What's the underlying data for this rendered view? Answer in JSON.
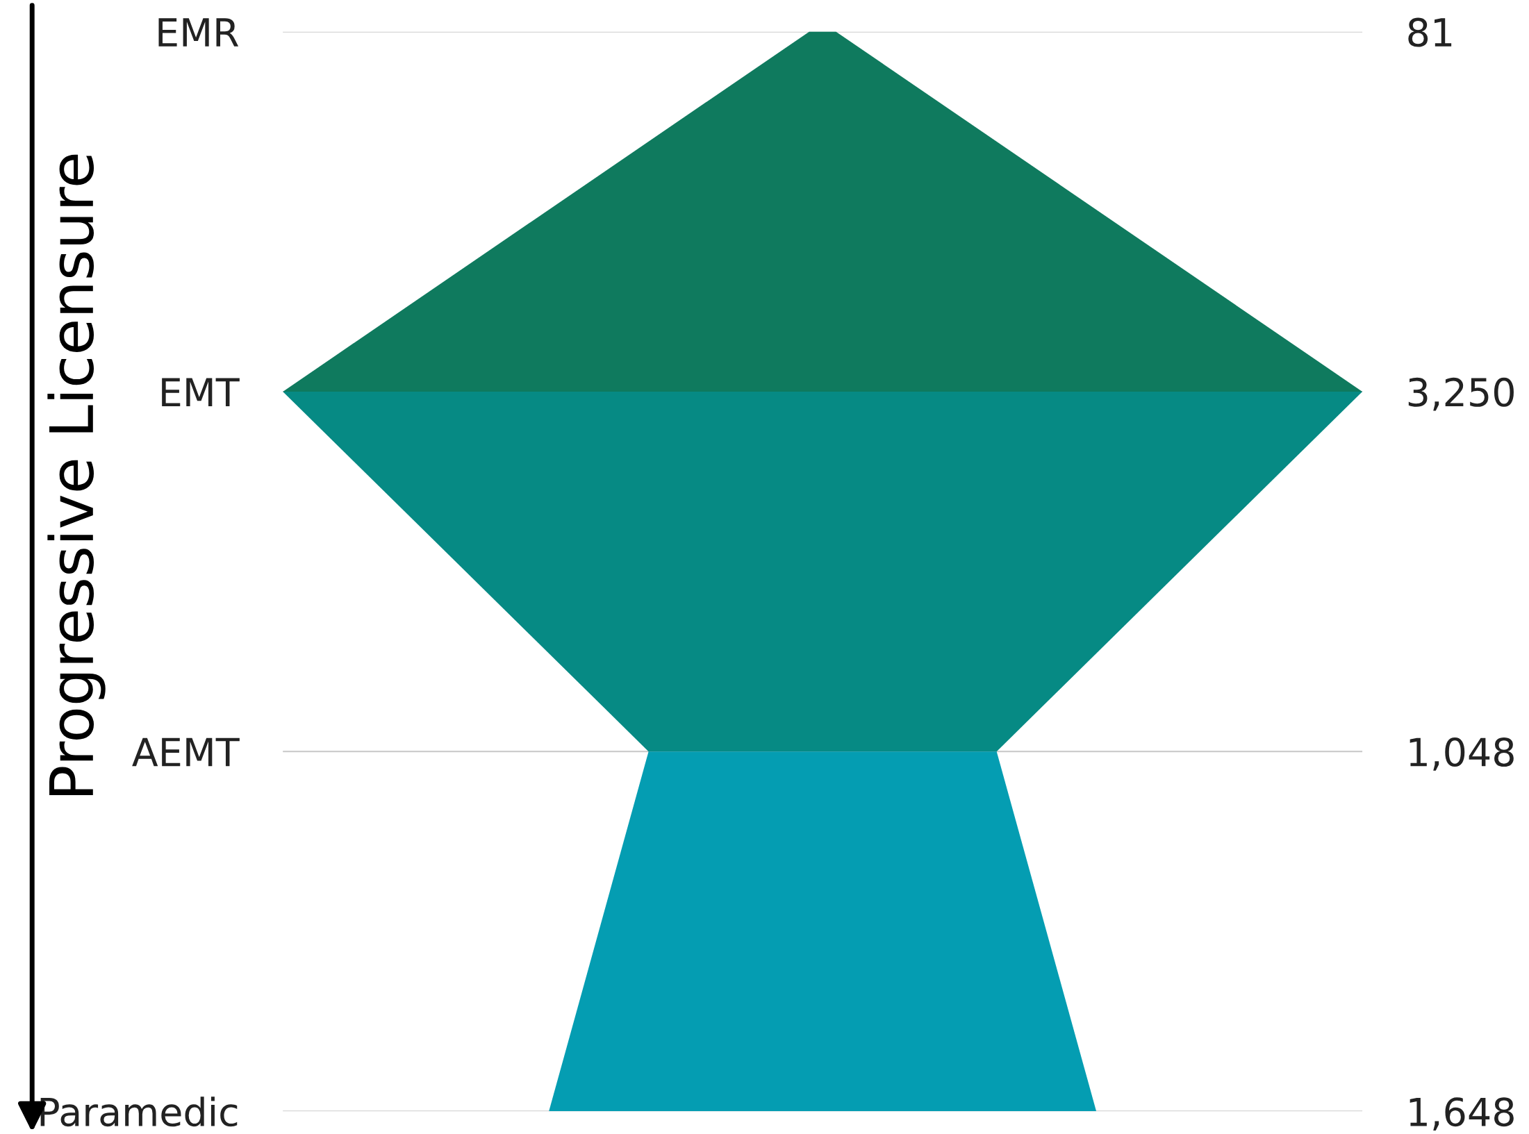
{
  "chart_data": {
    "type": "other",
    "ylabel": "Progressive Licensure",
    "categories": [
      "EMR",
      "EMT",
      "AEMT",
      "Paramedic"
    ],
    "values": [
      81,
      3250,
      1048,
      1648
    ],
    "value_labels": [
      "81",
      "3,250",
      "1,048",
      "1,648"
    ],
    "colors": [
      "#0f7a5e",
      "#0f7a5e",
      "#068a84",
      "#049db2"
    ]
  }
}
